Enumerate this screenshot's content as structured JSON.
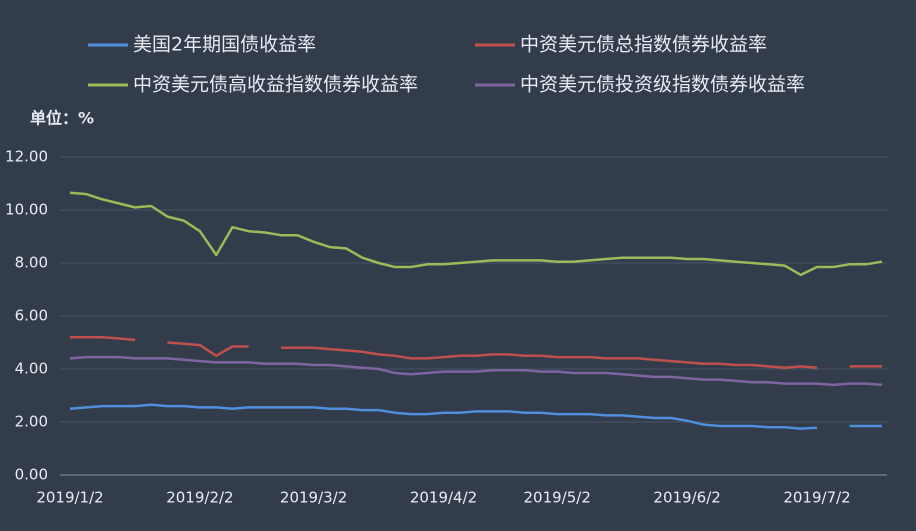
{
  "chart_data": {
    "type": "line",
    "unit_label": "单位：%",
    "categories": [
      "2019/1/2",
      null,
      null,
      null,
      null,
      null,
      null,
      null,
      "2019/2/2",
      null,
      null,
      null,
      null,
      null,
      null,
      "2019/3/2",
      null,
      null,
      null,
      null,
      null,
      null,
      null,
      "2019/4/2",
      null,
      null,
      null,
      null,
      null,
      null,
      "2019/5/2",
      null,
      null,
      null,
      null,
      null,
      null,
      null,
      "2019/6/2",
      null,
      null,
      null,
      null,
      null,
      null,
      null,
      "2019/7/2",
      null,
      null,
      null,
      null
    ],
    "series": [
      {
        "name": "美国2年期国债收益率",
        "color": "#4f8fdc",
        "values": [
          2.5,
          2.55,
          2.6,
          2.6,
          2.6,
          2.65,
          2.6,
          2.6,
          2.55,
          2.55,
          2.5,
          2.55,
          2.55,
          2.55,
          2.55,
          2.55,
          2.5,
          2.5,
          2.45,
          2.45,
          2.35,
          2.3,
          2.3,
          2.35,
          2.35,
          2.4,
          2.4,
          2.4,
          2.35,
          2.35,
          2.3,
          2.3,
          2.3,
          2.25,
          2.25,
          2.2,
          2.15,
          2.15,
          2.05,
          1.9,
          1.85,
          1.85,
          1.85,
          1.8,
          1.8,
          1.75,
          1.78,
          null,
          1.85,
          1.85,
          1.85
        ]
      },
      {
        "name": "中资美元债总指数债券收益率",
        "color": "#c0504d",
        "values": [
          5.2,
          5.2,
          5.2,
          5.15,
          5.1,
          null,
          5.0,
          4.95,
          4.9,
          4.5,
          4.85,
          4.85,
          null,
          4.8,
          4.8,
          4.8,
          4.75,
          4.7,
          4.65,
          4.55,
          4.5,
          4.4,
          4.4,
          4.45,
          4.5,
          4.5,
          4.55,
          4.55,
          4.5,
          4.5,
          4.45,
          4.45,
          4.45,
          4.4,
          4.4,
          4.4,
          4.35,
          4.3,
          4.25,
          4.2,
          4.2,
          4.15,
          4.15,
          4.1,
          4.05,
          4.1,
          4.05,
          null,
          4.1,
          4.1,
          4.1
        ]
      },
      {
        "name": "中资美元债高收益指数债券收益率",
        "color": "#9bbb59",
        "values": [
          10.65,
          10.6,
          10.4,
          10.25,
          10.1,
          10.15,
          9.75,
          9.6,
          9.2,
          8.3,
          9.35,
          9.2,
          9.15,
          9.05,
          9.05,
          8.8,
          8.6,
          8.55,
          8.2,
          8.0,
          7.85,
          7.85,
          7.95,
          7.95,
          8.0,
          8.05,
          8.1,
          8.1,
          8.1,
          8.1,
          8.05,
          8.05,
          8.1,
          8.15,
          8.2,
          8.2,
          8.2,
          8.2,
          8.15,
          8.15,
          8.1,
          8.05,
          8.0,
          7.95,
          7.9,
          7.55,
          7.85,
          7.85,
          7.95,
          7.95,
          8.05
        ]
      },
      {
        "name": "中资美元债投资级指数债券收益率",
        "color": "#8064a2",
        "values": [
          4.4,
          4.45,
          4.45,
          4.45,
          4.4,
          4.4,
          4.4,
          4.35,
          4.3,
          4.25,
          4.25,
          4.25,
          4.2,
          4.2,
          4.2,
          4.15,
          4.15,
          4.1,
          4.05,
          4.0,
          3.85,
          3.8,
          3.85,
          3.9,
          3.9,
          3.9,
          3.95,
          3.95,
          3.95,
          3.9,
          3.9,
          3.85,
          3.85,
          3.85,
          3.8,
          3.75,
          3.7,
          3.7,
          3.65,
          3.6,
          3.6,
          3.55,
          3.5,
          3.5,
          3.45,
          3.45,
          3.45,
          3.4,
          3.45,
          3.45,
          3.4
        ]
      }
    ],
    "ylim": [
      0,
      12
    ],
    "yticks": [
      {
        "value": 0,
        "label": "0.00"
      },
      {
        "value": 2,
        "label": "2.00"
      },
      {
        "value": 4,
        "label": "4.00"
      },
      {
        "value": 6,
        "label": "6.00"
      },
      {
        "value": 8,
        "label": "8.00"
      },
      {
        "value": 10,
        "label": "10.00"
      },
      {
        "value": 12,
        "label": "12.00"
      }
    ],
    "grid": true,
    "legend": "top"
  }
}
